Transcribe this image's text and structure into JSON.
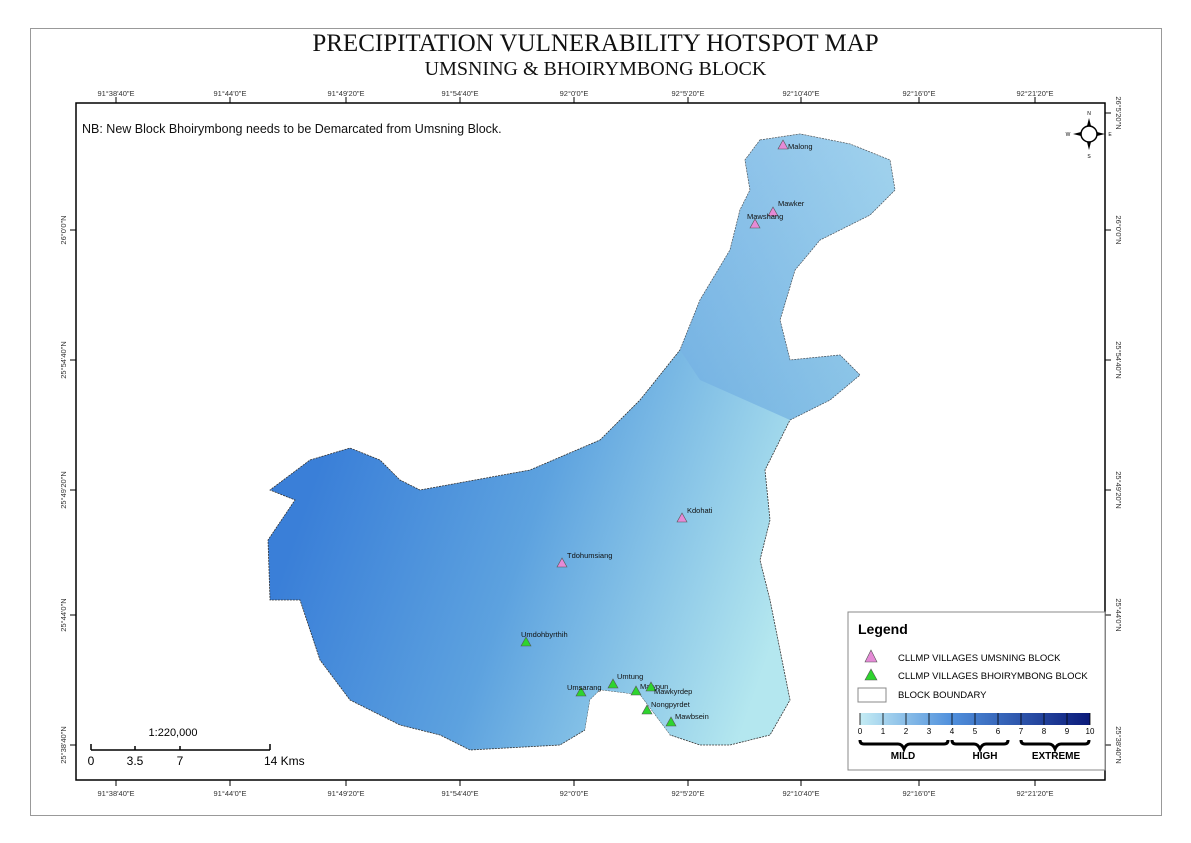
{
  "title": "PRECIPITATION VULNERABILITY  HOTSPOT MAP",
  "subtitle": "UMSNING & BHOIRYMBONG BLOCK",
  "note": "NB: New Block Bhoirymbong needs to be Demarcated from Umsning Block.",
  "longitude_labels": [
    "91°38'40\"E",
    "91°44'0\"E",
    "91°49'20\"E",
    "91°54'40\"E",
    "92°0'0\"E",
    "92°5'20\"E",
    "92°10'40\"E",
    "92°16'0\"E",
    "92°21'20\"E"
  ],
  "latitude_labels_left": [
    "26°0'0\"N",
    "25°54'40\"N",
    "25°49'20\"N",
    "25°44'0\"N",
    "25°38'40\"N"
  ],
  "latitude_labels_right": [
    "26°5'20\"N",
    "26°0'0\"N",
    "25°54'40\"N",
    "25°49'20\"N",
    "25°44'0\"N",
    "25°38'40\"N"
  ],
  "north_arrow": {
    "n": "N",
    "s": "S",
    "e": "E",
    "w": "W"
  },
  "villages": [
    {
      "name": "Malong",
      "block": "umsning"
    },
    {
      "name": "Mawker",
      "block": "umsning"
    },
    {
      "name": "Mawshang",
      "block": "umsning"
    },
    {
      "name": "Kdohati",
      "block": "umsning"
    },
    {
      "name": "Tdohumsiang",
      "block": "umsning"
    },
    {
      "name": "Umdohbyrthih",
      "block": "bhoirymbong"
    },
    {
      "name": "Umsarang",
      "block": "bhoirymbong"
    },
    {
      "name": "Umtung",
      "block": "bhoirymbong"
    },
    {
      "name": "Mawpun",
      "block": "bhoirymbong"
    },
    {
      "name": "Mawkyrdep",
      "block": "bhoirymbong"
    },
    {
      "name": "Nongpyrdet",
      "block": "bhoirymbong"
    },
    {
      "name": "Mawbsein",
      "block": "bhoirymbong"
    }
  ],
  "colors": {
    "umsning": "#e58ad6",
    "bhoirymbong": "#2ed42e",
    "scale_low": "#c4ecf4",
    "scale_high": "#0b1a7a"
  },
  "legend": {
    "title": "Legend",
    "items": [
      "CLLMP VILLAGES UMSNING BLOCK",
      "CLLMP VILLAGES BHOIRYMBONG BLOCK",
      "BLOCK BOUNDARY"
    ],
    "scale_ticks": [
      "0",
      "1",
      "2",
      "3",
      "4",
      "5",
      "6",
      "7",
      "8",
      "9",
      "10"
    ],
    "classes": [
      "MILD",
      "HIGH",
      "EXTREME"
    ]
  },
  "scalebar": {
    "ratio": "1:220,000",
    "ticks": [
      "0",
      "3.5",
      "7",
      "14 Kms"
    ]
  }
}
